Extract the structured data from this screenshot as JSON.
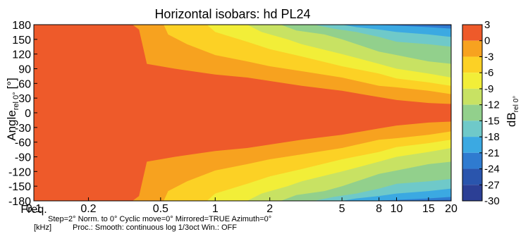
{
  "chart_data": {
    "type": "heatmap",
    "title": "Horizontal isobars: hd PL24",
    "ylabel_main": "Angle",
    "ylabel_sub": "rel 0°",
    "ylabel_unit": "[°]",
    "x_label_line1": "Freq.",
    "x_label_line2": "[kHz]",
    "x_scale": "log",
    "xlim": [
      0.1,
      20
    ],
    "ylim": [
      -180,
      180
    ],
    "x_ticks": [
      {
        "value": 0.1,
        "label": "0.1"
      },
      {
        "value": 0.2,
        "label": "0.2"
      },
      {
        "value": 0.5,
        "label": "0.5"
      },
      {
        "value": 1,
        "label": "1"
      },
      {
        "value": 2,
        "label": "2"
      },
      {
        "value": 5,
        "label": "5"
      },
      {
        "value": 8,
        "label": "8"
      },
      {
        "value": 10,
        "label": "10"
      },
      {
        "value": 15,
        "label": "15"
      },
      {
        "value": 20,
        "label": "20"
      }
    ],
    "y_ticks": [
      180,
      150,
      120,
      90,
      60,
      30,
      0,
      -30,
      -60,
      -90,
      -120,
      -150,
      -180
    ],
    "colorbar": {
      "label_main": "dB",
      "label_sub": "rel 0°",
      "range": [
        -30,
        3
      ],
      "ticks": [
        3,
        0,
        -3,
        -6,
        -9,
        -12,
        -15,
        -18,
        -21,
        -24,
        -27,
        -30
      ],
      "levels": [
        {
          "min": 0,
          "max": 3,
          "color": "#ee5a2a"
        },
        {
          "min": -3,
          "max": 0,
          "color": "#f7a21f"
        },
        {
          "min": -6,
          "max": -3,
          "color": "#fcd125"
        },
        {
          "min": -9,
          "max": -6,
          "color": "#f2ee38"
        },
        {
          "min": -12,
          "max": -9,
          "color": "#c8e263"
        },
        {
          "min": -15,
          "max": -12,
          "color": "#92d08c"
        },
        {
          "min": -18,
          "max": -15,
          "color": "#6fc9c9"
        },
        {
          "min": -21,
          "max": -18,
          "color": "#3ba9e2"
        },
        {
          "min": -24,
          "max": -21,
          "color": "#2f7bd0"
        },
        {
          "min": -27,
          "max": -24,
          "color": "#2a55ad"
        },
        {
          "min": -30,
          "max": -27,
          "color": "#2c3f95"
        }
      ]
    },
    "isobar_boundaries": [
      {
        "level": 0,
        "points": [
          [
            0.1,
            180
          ],
          [
            0.35,
            180
          ],
          [
            0.38,
            170
          ],
          [
            0.42,
            100
          ],
          [
            0.6,
            90
          ],
          [
            1,
            78
          ],
          [
            1.5,
            72
          ],
          [
            2,
            65
          ],
          [
            3,
            55
          ],
          [
            5,
            45
          ],
          [
            8,
            32
          ],
          [
            10,
            26
          ],
          [
            15,
            20
          ],
          [
            20,
            18
          ]
        ]
      },
      {
        "level": -3,
        "points": [
          [
            0.52,
            180
          ],
          [
            0.55,
            160
          ],
          [
            0.7,
            140
          ],
          [
            1,
            118
          ],
          [
            1.5,
            105
          ],
          [
            2,
            95
          ],
          [
            3,
            85
          ],
          [
            5,
            72
          ],
          [
            8,
            55
          ],
          [
            10,
            52
          ],
          [
            15,
            45
          ],
          [
            20,
            38
          ]
        ]
      },
      {
        "level": -6,
        "points": [
          [
            0.9,
            180
          ],
          [
            1.0,
            165
          ],
          [
            1.5,
            145
          ],
          [
            2,
            130
          ],
          [
            3,
            115
          ],
          [
            5,
            95
          ],
          [
            8,
            80
          ],
          [
            10,
            70
          ],
          [
            15,
            62
          ],
          [
            20,
            55
          ]
        ]
      },
      {
        "level": -9,
        "points": [
          [
            1.5,
            180
          ],
          [
            1.8,
            165
          ],
          [
            2.5,
            150
          ],
          [
            3,
            140
          ],
          [
            5,
            120
          ],
          [
            8,
            100
          ],
          [
            10,
            90
          ],
          [
            15,
            80
          ],
          [
            20,
            72
          ]
        ]
      },
      {
        "level": -12,
        "points": [
          [
            2.3,
            180
          ],
          [
            2.8,
            168
          ],
          [
            4,
            160
          ],
          [
            5,
            150
          ],
          [
            8,
            125
          ],
          [
            10,
            118
          ],
          [
            15,
            105
          ],
          [
            20,
            100
          ]
        ]
      },
      {
        "level": -15,
        "points": [
          [
            3.5,
            180
          ],
          [
            4.5,
            172
          ],
          [
            6,
            165
          ],
          [
            8,
            155
          ],
          [
            10,
            145
          ],
          [
            15,
            140
          ],
          [
            20,
            135
          ]
        ]
      },
      {
        "level": -18,
        "points": [
          [
            5,
            180
          ],
          [
            6,
            175
          ],
          [
            8,
            170
          ],
          [
            10,
            165
          ],
          [
            15,
            160
          ],
          [
            20,
            155
          ]
        ]
      },
      {
        "level": -21,
        "points": [
          [
            7,
            180
          ],
          [
            10,
            178
          ],
          [
            15,
            175
          ],
          [
            20,
            172
          ]
        ]
      },
      {
        "level": -24,
        "points": [
          [
            10,
            180
          ],
          [
            15,
            179
          ],
          [
            20,
            178
          ]
        ]
      }
    ]
  },
  "footer": {
    "params_line1": "Step=2°   Norm. to 0°   Cyclic move=0°   Mirrored=TRUE   Azimuth=0°",
    "params_line2": "Proc.: Smooth: continuous log 1/3oct    Win.: OFF"
  }
}
